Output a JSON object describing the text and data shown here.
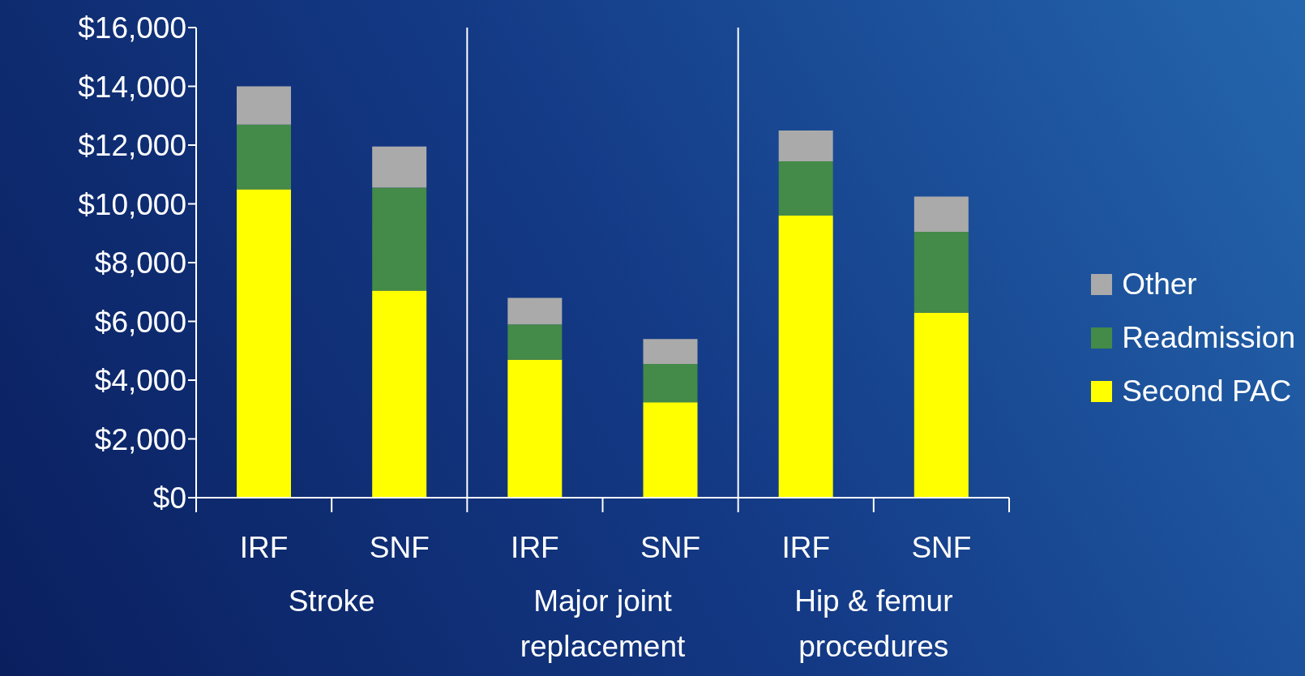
{
  "chart_data": {
    "type": "bar",
    "stacked": true,
    "categories": [
      "IRF",
      "SNF",
      "IRF",
      "SNF",
      "IRF",
      "SNF"
    ],
    "series": [
      {
        "name": "Second PAC",
        "color": "#ffff00",
        "values": [
          10500,
          7050,
          4700,
          3250,
          9600,
          6300
        ]
      },
      {
        "name": "Readmission",
        "color": "#448a48",
        "values": [
          2200,
          3500,
          1200,
          1300,
          1850,
          2750
        ]
      },
      {
        "name": "Other",
        "color": "#aaaaaa",
        "values": [
          1300,
          1400,
          900,
          850,
          1050,
          1200
        ]
      }
    ],
    "ylim": [
      0,
      16000
    ],
    "yticks": [
      {
        "value": 0,
        "label": "$0"
      },
      {
        "value": 2000,
        "label": "$2,000"
      },
      {
        "value": 4000,
        "label": "$4,000"
      },
      {
        "value": 6000,
        "label": "$6,000"
      },
      {
        "value": 8000,
        "label": "$8,000"
      },
      {
        "value": 10000,
        "label": "$10,000"
      },
      {
        "value": 12000,
        "label": "$12,000"
      },
      {
        "value": 14000,
        "label": "$14,000"
      },
      {
        "value": 16000,
        "label": "$16,000"
      }
    ],
    "annotations": [
      "Stroke",
      "Major joint replacement",
      "Hip & femur procedures"
    ],
    "legend": "right",
    "grid": false
  }
}
